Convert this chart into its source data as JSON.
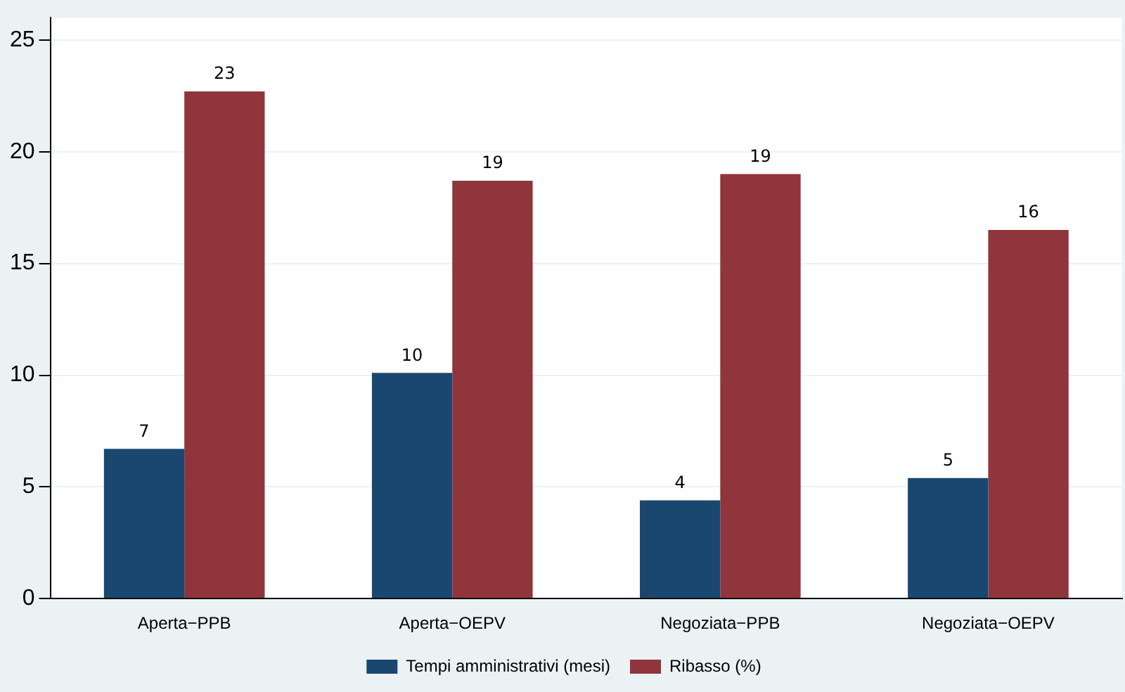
{
  "chart_data": {
    "type": "bar",
    "categories": [
      "Aperta−PPB",
      "Aperta−OEPV",
      "Negoziata−PPB",
      "Negoziata−OEPV"
    ],
    "series": [
      {
        "name": "Tempi amministrativi (mesi)",
        "color": "#1a476f",
        "values": [
          6.7,
          10.1,
          4.4,
          5.4
        ],
        "value_labels": [
          "7",
          "10",
          "4",
          "5"
        ]
      },
      {
        "name": "Ribasso (%)",
        "color": "#90353b",
        "values": [
          22.7,
          18.7,
          19.0,
          16.5
        ],
        "value_labels": [
          "23",
          "19",
          "19",
          "16"
        ]
      }
    ],
    "ylim": [
      0,
      26
    ],
    "yticks": [
      0,
      5,
      10,
      15,
      20,
      25
    ],
    "grid": "y",
    "legend": "bottom"
  }
}
